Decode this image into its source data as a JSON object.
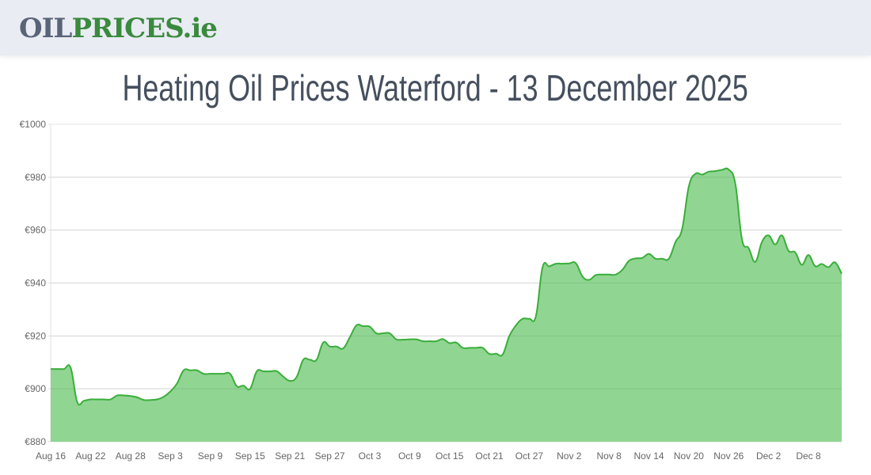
{
  "header": {
    "logo_part1": "OIL",
    "logo_part2": "PRICES.ie",
    "logo_colors": {
      "oil": "#5a6478",
      "prices": "#3a8a3e"
    }
  },
  "page": {
    "title": "Heating Oil Prices Waterford - 13 December 2025"
  },
  "chart_data": {
    "type": "area",
    "title": "",
    "xlabel": "",
    "ylabel": "",
    "ylim": [
      880,
      1000
    ],
    "y_ticks": [
      "€880",
      "€900",
      "€920",
      "€940",
      "€960",
      "€980",
      "€1000"
    ],
    "y_tick_values": [
      880,
      900,
      920,
      940,
      960,
      980,
      1000
    ],
    "x_ticks": [
      "Aug 16",
      "Aug 22",
      "Aug 28",
      "Sep 3",
      "Sep 9",
      "Sep 15",
      "Sep 21",
      "Sep 27",
      "Oct 3",
      "Oct 9",
      "Oct 15",
      "Oct 21",
      "Oct 27",
      "Nov 2",
      "Nov 8",
      "Nov 14",
      "Nov 20",
      "Nov 26",
      "Dec 2",
      "Dec 8"
    ],
    "grid": true,
    "legend": "none",
    "colors": {
      "line": "#3aae3a",
      "fill": "#90d592"
    },
    "series": [
      {
        "values": [
          907.5,
          907.5,
          907.5,
          908,
          895,
          895.5,
          896,
          896,
          896,
          896,
          897.5,
          897.5,
          897.3,
          896.8,
          895.8,
          895.8,
          896,
          897,
          899,
          902,
          907,
          907,
          907,
          905.7,
          905.7,
          905.7,
          905.7,
          905.7,
          901,
          901.2,
          900,
          906.6,
          906.6,
          906.6,
          906.7,
          904.6,
          903,
          904.5,
          911,
          911,
          911,
          917.5,
          916,
          916,
          915.3,
          919.5,
          924,
          923.7,
          923.5,
          921,
          921,
          921,
          918.7,
          918.6,
          918.7,
          918.7,
          918,
          918,
          918,
          918.8,
          917.3,
          917.5,
          915.5,
          915.5,
          915.5,
          915.5,
          913.2,
          913.3,
          913,
          920,
          924,
          926.5,
          926.5,
          927.5,
          946,
          946.3,
          947.3,
          947.3,
          947.4,
          947.5,
          942.5,
          941.2,
          943,
          943.2,
          943.2,
          943.2,
          945,
          948.4,
          949.3,
          949.5,
          951,
          949.2,
          949.2,
          949.2,
          955.5,
          960.5,
          976.5,
          981.3,
          981,
          982.1,
          982.3,
          982.8,
          982.9,
          977.5,
          956.5,
          953.2,
          948,
          955.5,
          958,
          954.6,
          958,
          952.2,
          951.6,
          946.9,
          950.6,
          946.4,
          947.2,
          946,
          947.8,
          943.5
        ]
      }
    ]
  }
}
